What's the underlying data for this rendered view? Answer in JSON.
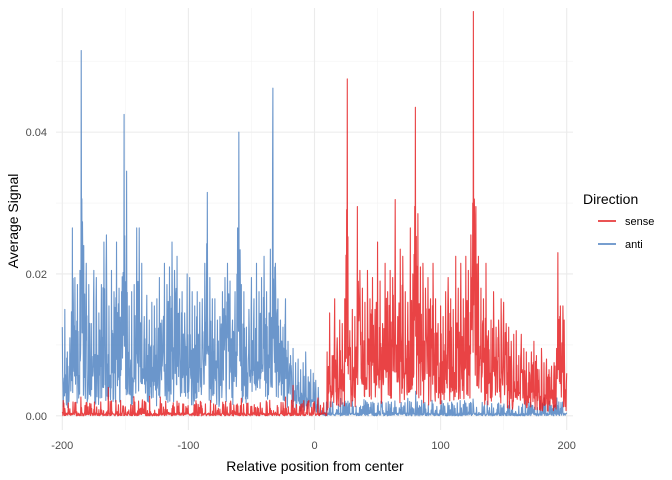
{
  "chart_data": {
    "type": "line",
    "title": "",
    "xlabel": "Relative position from center",
    "ylabel": "Average Signal",
    "xlim": [
      -205,
      205
    ],
    "ylim": [
      -0.002,
      0.0575
    ],
    "x_ticks": [
      -200,
      -100,
      0,
      100,
      200
    ],
    "x_tick_labels": [
      "-200",
      "-100",
      "0",
      "100",
      "200"
    ],
    "y_ticks": [
      0.0,
      0.02,
      0.04
    ],
    "y_tick_labels": [
      "0.00",
      "0.02",
      "0.04"
    ],
    "grid": true,
    "legend": {
      "title": "Direction",
      "position": "right"
    },
    "series": [
      {
        "name": "sense",
        "color": "#E41A1C",
        "peaks": [
          [
            10,
            0.009
          ],
          [
            12,
            0.0145
          ],
          [
            14,
            0.0085
          ],
          [
            16,
            0.0165
          ],
          [
            18,
            0.011
          ],
          [
            20,
            0.0135
          ],
          [
            22,
            0.013
          ],
          [
            24,
            0.0165
          ],
          [
            26,
            0.0475
          ],
          [
            28,
            0.012
          ],
          [
            30,
            0.015
          ],
          [
            32,
            0.014
          ],
          [
            34,
            0.0295
          ],
          [
            36,
            0.0205
          ],
          [
            38,
            0.018
          ],
          [
            40,
            0.016
          ],
          [
            42,
            0.0205
          ],
          [
            44,
            0.0165
          ],
          [
            46,
            0.0195
          ],
          [
            48,
            0.015
          ],
          [
            50,
            0.0245
          ],
          [
            52,
            0.019
          ],
          [
            54,
            0.013
          ],
          [
            56,
            0.0215
          ],
          [
            58,
            0.0175
          ],
          [
            60,
            0.0205
          ],
          [
            62,
            0.0195
          ],
          [
            64,
            0.0305
          ],
          [
            66,
            0.014
          ],
          [
            68,
            0.0235
          ],
          [
            70,
            0.0225
          ],
          [
            72,
            0.0175
          ],
          [
            74,
            0.016
          ],
          [
            76,
            0.0265
          ],
          [
            78,
            0.02
          ],
          [
            80,
            0.0435
          ],
          [
            82,
            0.0285
          ],
          [
            84,
            0.021
          ],
          [
            86,
            0.0215
          ],
          [
            88,
            0.018
          ],
          [
            90,
            0.0195
          ],
          [
            92,
            0.0165
          ],
          [
            94,
            0.0215
          ],
          [
            96,
            0.0165
          ],
          [
            98,
            0.013
          ],
          [
            100,
            0.0155
          ],
          [
            102,
            0.014
          ],
          [
            104,
            0.0175
          ],
          [
            106,
            0.0195
          ],
          [
            108,
            0.0165
          ],
          [
            110,
            0.015
          ],
          [
            112,
            0.0225
          ],
          [
            114,
            0.018
          ],
          [
            116,
            0.0215
          ],
          [
            118,
            0.0165
          ],
          [
            120,
            0.0225
          ],
          [
            122,
            0.0205
          ],
          [
            124,
            0.0255
          ],
          [
            126,
            0.057
          ],
          [
            128,
            0.0295
          ],
          [
            130,
            0.0225
          ],
          [
            132,
            0.018
          ],
          [
            134,
            0.0165
          ],
          [
            136,
            0.0215
          ],
          [
            138,
            0.012
          ],
          [
            140,
            0.0135
          ],
          [
            142,
            0.0175
          ],
          [
            144,
            0.0125
          ],
          [
            146,
            0.0135
          ],
          [
            148,
            0.0165
          ],
          [
            150,
            0.016
          ],
          [
            152,
            0.013
          ],
          [
            154,
            0.0125
          ],
          [
            156,
            0.0105
          ],
          [
            158,
            0.0115
          ],
          [
            160,
            0.012
          ],
          [
            162,
            0.0085
          ],
          [
            164,
            0.0115
          ],
          [
            166,
            0.0095
          ],
          [
            168,
            0.009
          ],
          [
            170,
            0.0075
          ],
          [
            172,
            0.009
          ],
          [
            174,
            0.0105
          ],
          [
            176,
            0.0085
          ],
          [
            178,
            0.0065
          ],
          [
            180,
            0.0095
          ],
          [
            182,
            0.0075
          ],
          [
            184,
            0.008
          ],
          [
            186,
            0.0065
          ],
          [
            188,
            0.007
          ],
          [
            190,
            0.0075
          ],
          [
            192,
            0.0095
          ],
          [
            193,
            0.023
          ],
          [
            195,
            0.0155
          ],
          [
            197,
            0.0155
          ],
          [
            198,
            0.0135
          ],
          [
            200,
            0.006
          ]
        ]
      },
      {
        "name": "anti",
        "color": "#4A7FBF",
        "peaks": [
          [
            -200,
            0.0125
          ],
          [
            -198,
            0.015
          ],
          [
            -196,
            0.009
          ],
          [
            -194,
            0.011
          ],
          [
            -192,
            0.0265
          ],
          [
            -190,
            0.0195
          ],
          [
            -188,
            0.0185
          ],
          [
            -186,
            0.0205
          ],
          [
            -185,
            0.0515
          ],
          [
            -183,
            0.024
          ],
          [
            -181,
            0.0215
          ],
          [
            -179,
            0.0185
          ],
          [
            -177,
            0.013
          ],
          [
            -175,
            0.0205
          ],
          [
            -173,
            0.0195
          ],
          [
            -171,
            0.0145
          ],
          [
            -169,
            0.0185
          ],
          [
            -167,
            0.0245
          ],
          [
            -165,
            0.0255
          ],
          [
            -163,
            0.0155
          ],
          [
            -161,
            0.0205
          ],
          [
            -159,
            0.0175
          ],
          [
            -157,
            0.0245
          ],
          [
            -155,
            0.018
          ],
          [
            -153,
            0.0175
          ],
          [
            -151,
            0.0425
          ],
          [
            -149,
            0.0345
          ],
          [
            -147,
            0.0155
          ],
          [
            -145,
            0.0175
          ],
          [
            -143,
            0.0185
          ],
          [
            -141,
            0.0265
          ],
          [
            -139,
            0.0265
          ],
          [
            -137,
            0.0215
          ],
          [
            -135,
            0.014
          ],
          [
            -133,
            0.017
          ],
          [
            -131,
            0.0135
          ],
          [
            -129,
            0.016
          ],
          [
            -127,
            0.0155
          ],
          [
            -125,
            0.0165
          ],
          [
            -123,
            0.0195
          ],
          [
            -121,
            0.0135
          ],
          [
            -119,
            0.0215
          ],
          [
            -117,
            0.0185
          ],
          [
            -115,
            0.021
          ],
          [
            -113,
            0.0245
          ],
          [
            -111,
            0.0205
          ],
          [
            -109,
            0.0225
          ],
          [
            -107,
            0.0165
          ],
          [
            -105,
            0.0175
          ],
          [
            -103,
            0.0145
          ],
          [
            -101,
            0.02
          ],
          [
            -99,
            0.0195
          ],
          [
            -97,
            0.0175
          ],
          [
            -95,
            0.0155
          ],
          [
            -93,
            0.0175
          ],
          [
            -91,
            0.016
          ],
          [
            -89,
            0.0165
          ],
          [
            -87,
            0.0215
          ],
          [
            -85,
            0.0315
          ],
          [
            -83,
            0.0195
          ],
          [
            -81,
            0.0165
          ],
          [
            -79,
            0.0165
          ],
          [
            -77,
            0.0135
          ],
          [
            -75,
            0.014
          ],
          [
            -73,
            0.0175
          ],
          [
            -71,
            0.0195
          ],
          [
            -69,
            0.0215
          ],
          [
            -67,
            0.019
          ],
          [
            -65,
            0.0135
          ],
          [
            -63,
            0.0175
          ],
          [
            -61,
            0.0265
          ],
          [
            -60,
            0.04
          ],
          [
            -58,
            0.0185
          ],
          [
            -56,
            0.0175
          ],
          [
            -54,
            0.0125
          ],
          [
            -52,
            0.015
          ],
          [
            -50,
            0.0195
          ],
          [
            -48,
            0.0165
          ],
          [
            -46,
            0.0215
          ],
          [
            -44,
            0.0175
          ],
          [
            -42,
            0.0195
          ],
          [
            -40,
            0.0225
          ],
          [
            -38,
            0.0175
          ],
          [
            -36,
            0.0145
          ],
          [
            -35,
            0.0235
          ],
          [
            -33,
            0.0462
          ],
          [
            -31,
            0.0215
          ],
          [
            -29,
            0.0165
          ],
          [
            -27,
            0.0135
          ],
          [
            -25,
            0.0125
          ],
          [
            -23,
            0.0165
          ],
          [
            -21,
            0.0105
          ],
          [
            -19,
            0.0085
          ],
          [
            -17,
            0.0095
          ],
          [
            -15,
            0.0075
          ],
          [
            -13,
            0.008
          ],
          [
            -11,
            0.0065
          ],
          [
            -9,
            0.0075
          ],
          [
            -7,
            0.009
          ],
          [
            -5,
            0.0055
          ],
          [
            -3,
            0.0065
          ],
          [
            -1,
            0.006
          ],
          [
            1,
            0.005
          ],
          [
            3,
            0.004
          ]
        ]
      }
    ]
  }
}
